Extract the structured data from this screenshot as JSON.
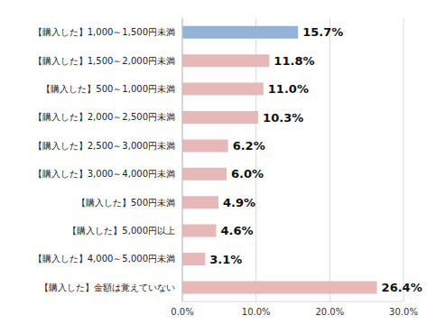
{
  "chart_data": {
    "type": "bar",
    "orientation": "horizontal",
    "categories": [
      "【購入した】1,000～1,500円未満",
      "【購入した】1,500～2,000円未満",
      "【購入した】500～1,000円未満",
      "【購入した】2,000～2,500円未満",
      "【購入した】2,500～3,000円未満",
      "【購入した】3,000～4,000円未満",
      "【購入した】500円未満",
      "【購入した】5,000円以上",
      "【購入した】4,000～5,000円未満",
      "【購入した】金額は覚えていない"
    ],
    "values": [
      15.7,
      11.8,
      11.0,
      10.3,
      6.2,
      6.0,
      4.9,
      4.6,
      3.1,
      26.4
    ],
    "value_labels": [
      "15.7%",
      "11.8%",
      "11.0%",
      "10.3%",
      "6.2%",
      "6.0%",
      "4.9%",
      "4.6%",
      "3.1%",
      "26.4%"
    ],
    "colors": [
      "#95b3d7",
      "#e6b9b8",
      "#e6b9b8",
      "#e6b9b8",
      "#e6b9b8",
      "#e6b9b8",
      "#e6b9b8",
      "#e6b9b8",
      "#e6b9b8",
      "#e6b9b8"
    ],
    "xlim": [
      0,
      30
    ],
    "xticks": [
      {
        "value": 0,
        "label": "0.0%"
      },
      {
        "value": 10,
        "label": "10.0%"
      },
      {
        "value": 20,
        "label": "20.0%"
      },
      {
        "value": 30,
        "label": "30.0%"
      }
    ],
    "grid": true,
    "data_labels": true
  }
}
